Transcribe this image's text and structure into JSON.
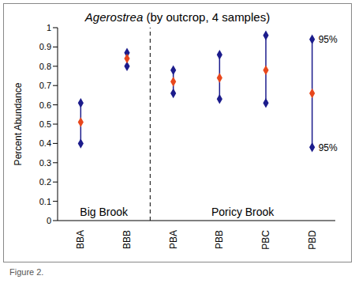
{
  "chart_data": {
    "type": "scatter",
    "title": "Agerostrea (by outcrop, 4 samples)",
    "y_label": "Percent Abundance",
    "categories": [
      "BBA",
      "BBB",
      "PBA",
      "PBB",
      "PBC",
      "PBD"
    ],
    "values": [
      0.51,
      0.84,
      0.72,
      0.74,
      0.78,
      0.66
    ],
    "color": "#e8471c",
    "error_low": [
      0.4,
      0.8,
      0.66,
      0.63,
      0.61,
      0.38
    ],
    "error_high": [
      0.61,
      0.87,
      0.78,
      0.86,
      0.96,
      0.94
    ],
    "error_color": "#1c1c8c",
    "marker": "diamond",
    "ylim": [
      0,
      1
    ],
    "yticks": [
      0,
      0.1,
      0.2,
      0.3,
      0.4,
      0.5,
      0.6,
      0.7,
      0.8,
      0.9,
      1
    ],
    "groups": [
      {
        "label": "Big Brook",
        "categories": [
          "BBA",
          "BBB"
        ]
      },
      {
        "label": "Poricy Brook",
        "categories": [
          "PBA",
          "PBB",
          "PBC",
          "PBD"
        ]
      }
    ],
    "annotations": [
      {
        "text": "95%",
        "category": "PBD",
        "value": 0.94
      },
      {
        "text": "95%",
        "category": "PBD",
        "value": 0.38
      }
    ],
    "caption": "Figure 2."
  }
}
